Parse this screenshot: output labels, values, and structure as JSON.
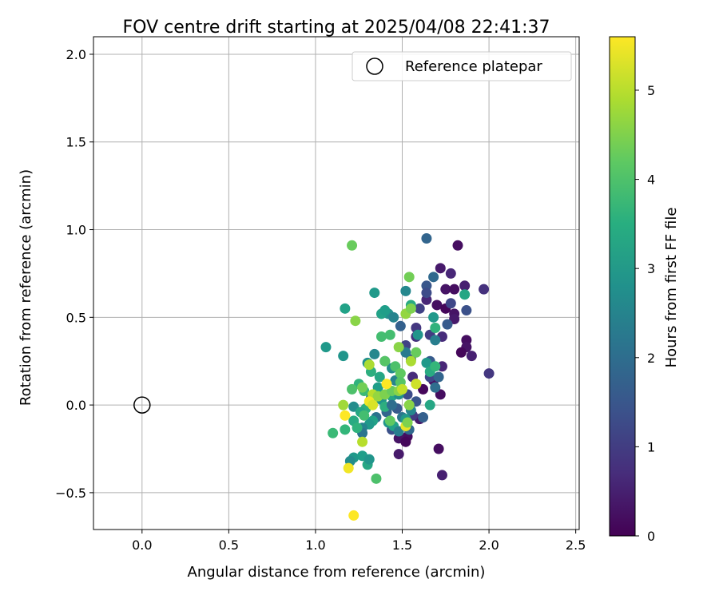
{
  "chart_data": {
    "type": "scatter",
    "title": "FOV centre drift starting at 2025/04/08 22:41:37",
    "xlabel": "Angular distance from reference (arcmin)",
    "ylabel": "Rotation from reference (arcmin)",
    "xlim": [
      -0.28,
      2.52
    ],
    "ylim": [
      -0.71,
      2.1
    ],
    "xticks": [
      0.0,
      0.5,
      1.0,
      1.5,
      2.0,
      2.5
    ],
    "xtick_labels": [
      "0.0",
      "0.5",
      "1.0",
      "1.5",
      "2.0",
      "2.5"
    ],
    "yticks": [
      -0.5,
      0.0,
      0.5,
      1.0,
      1.5,
      2.0
    ],
    "ytick_labels": [
      "−0.5",
      "0.0",
      "0.5",
      "1.0",
      "1.5",
      "2.0"
    ],
    "grid": true,
    "legend": {
      "position": "top-right",
      "label": "Reference platepar"
    },
    "reference_point": {
      "x": 0.0,
      "y": 0.0,
      "marker": "open-circle"
    },
    "colorbar": {
      "label": "Hours from first FF file",
      "colormap": "viridis",
      "min": 0,
      "max": 5.6,
      "ticks": [
        0,
        1,
        2,
        3,
        4,
        5
      ],
      "tick_labels": [
        "0",
        "1",
        "2",
        "3",
        "4",
        "5"
      ]
    },
    "points": [
      {
        "x": 1.82,
        "y": 0.91,
        "h": 0.2
      },
      {
        "x": 1.72,
        "y": 0.78,
        "h": 0.4
      },
      {
        "x": 1.78,
        "y": 0.75,
        "h": 0.6
      },
      {
        "x": 1.86,
        "y": 0.68,
        "h": 0.5
      },
      {
        "x": 1.97,
        "y": 0.66,
        "h": 0.8
      },
      {
        "x": 1.75,
        "y": 0.66,
        "h": 0.3
      },
      {
        "x": 1.8,
        "y": 0.66,
        "h": 0.2
      },
      {
        "x": 1.7,
        "y": 0.57,
        "h": 0.2
      },
      {
        "x": 1.64,
        "y": 0.6,
        "h": 0.6
      },
      {
        "x": 1.75,
        "y": 0.55,
        "h": 0.1
      },
      {
        "x": 1.8,
        "y": 0.52,
        "h": 0.3
      },
      {
        "x": 1.8,
        "y": 0.49,
        "h": 0.4
      },
      {
        "x": 1.87,
        "y": 0.37,
        "h": 0.2
      },
      {
        "x": 1.87,
        "y": 0.33,
        "h": 0.3
      },
      {
        "x": 1.84,
        "y": 0.3,
        "h": 0.1
      },
      {
        "x": 1.9,
        "y": 0.28,
        "h": 0.5
      },
      {
        "x": 2.0,
        "y": 0.18,
        "h": 0.9
      },
      {
        "x": 1.73,
        "y": 0.22,
        "h": 0.6
      },
      {
        "x": 1.68,
        "y": 0.14,
        "h": 0.3
      },
      {
        "x": 1.62,
        "y": 0.09,
        "h": 0.1
      },
      {
        "x": 1.72,
        "y": 0.06,
        "h": 0.2
      },
      {
        "x": 1.6,
        "y": -0.08,
        "h": 0.4
      },
      {
        "x": 1.53,
        "y": -0.18,
        "h": 0.2
      },
      {
        "x": 1.48,
        "y": -0.19,
        "h": 0.3
      },
      {
        "x": 1.52,
        "y": -0.21,
        "h": 0.1
      },
      {
        "x": 1.48,
        "y": -0.28,
        "h": 0.4
      },
      {
        "x": 1.71,
        "y": -0.25,
        "h": 0.2
      },
      {
        "x": 1.73,
        "y": -0.4,
        "h": 0.5
      },
      {
        "x": 1.64,
        "y": 0.95,
        "h": 1.8
      },
      {
        "x": 1.64,
        "y": 0.68,
        "h": 1.5
      },
      {
        "x": 1.68,
        "y": 0.73,
        "h": 1.9
      },
      {
        "x": 1.64,
        "y": 0.64,
        "h": 1.3
      },
      {
        "x": 1.78,
        "y": 0.58,
        "h": 1.2
      },
      {
        "x": 1.87,
        "y": 0.54,
        "h": 1.4
      },
      {
        "x": 1.6,
        "y": 0.55,
        "h": 1.1
      },
      {
        "x": 1.66,
        "y": 0.4,
        "h": 1.0
      },
      {
        "x": 1.58,
        "y": 0.44,
        "h": 0.9
      },
      {
        "x": 1.76,
        "y": 0.46,
        "h": 1.6
      },
      {
        "x": 1.73,
        "y": 0.39,
        "h": 0.7
      },
      {
        "x": 1.58,
        "y": 0.39,
        "h": 0.8
      },
      {
        "x": 1.52,
        "y": 0.34,
        "h": 1.1
      },
      {
        "x": 1.49,
        "y": 0.45,
        "h": 1.7
      },
      {
        "x": 1.55,
        "y": 0.26,
        "h": 1.4
      },
      {
        "x": 1.56,
        "y": 0.16,
        "h": 0.7
      },
      {
        "x": 1.66,
        "y": 0.16,
        "h": 1.2
      },
      {
        "x": 1.71,
        "y": 0.16,
        "h": 1.8
      },
      {
        "x": 1.66,
        "y": 0.25,
        "h": 1.6
      },
      {
        "x": 1.69,
        "y": 0.1,
        "h": 2.0
      },
      {
        "x": 1.53,
        "y": 0.06,
        "h": 1.3
      },
      {
        "x": 1.58,
        "y": 0.02,
        "h": 1.5
      },
      {
        "x": 1.56,
        "y": -0.06,
        "h": 1.0
      },
      {
        "x": 1.62,
        "y": -0.07,
        "h": 1.7
      },
      {
        "x": 1.54,
        "y": -0.14,
        "h": 1.9
      },
      {
        "x": 1.47,
        "y": -0.02,
        "h": 1.6
      },
      {
        "x": 1.44,
        "y": -0.14,
        "h": 1.4
      },
      {
        "x": 1.5,
        "y": -0.07,
        "h": 2.2
      },
      {
        "x": 1.41,
        "y": -0.04,
        "h": 1.8
      },
      {
        "x": 1.35,
        "y": -0.07,
        "h": 2.1
      },
      {
        "x": 1.52,
        "y": 0.65,
        "h": 2.6
      },
      {
        "x": 1.42,
        "y": 0.52,
        "h": 2.8
      },
      {
        "x": 1.45,
        "y": 0.5,
        "h": 2.5
      },
      {
        "x": 1.38,
        "y": 0.52,
        "h": 3.2
      },
      {
        "x": 1.55,
        "y": 0.57,
        "h": 3.4
      },
      {
        "x": 1.4,
        "y": 0.54,
        "h": 3.1
      },
      {
        "x": 1.68,
        "y": 0.5,
        "h": 3.0
      },
      {
        "x": 1.69,
        "y": 0.44,
        "h": 3.6
      },
      {
        "x": 1.69,
        "y": 0.37,
        "h": 2.4
      },
      {
        "x": 1.59,
        "y": 0.4,
        "h": 2.9
      },
      {
        "x": 1.86,
        "y": 0.63,
        "h": 3.3
      },
      {
        "x": 1.34,
        "y": 0.64,
        "h": 3.0
      },
      {
        "x": 1.17,
        "y": 0.55,
        "h": 3.2
      },
      {
        "x": 1.06,
        "y": 0.33,
        "h": 3.0
      },
      {
        "x": 1.16,
        "y": 0.28,
        "h": 2.9
      },
      {
        "x": 1.34,
        "y": 0.29,
        "h": 2.6
      },
      {
        "x": 1.4,
        "y": 0.25,
        "h": 2.4
      },
      {
        "x": 1.44,
        "y": 0.21,
        "h": 2.7
      },
      {
        "x": 1.3,
        "y": 0.24,
        "h": 2.8
      },
      {
        "x": 1.32,
        "y": 0.19,
        "h": 3.5
      },
      {
        "x": 1.37,
        "y": 0.16,
        "h": 3.3
      },
      {
        "x": 1.46,
        "y": 0.14,
        "h": 2.5
      },
      {
        "x": 1.52,
        "y": 0.3,
        "h": 2.3
      },
      {
        "x": 1.64,
        "y": 0.24,
        "h": 3.0
      },
      {
        "x": 1.66,
        "y": 0.19,
        "h": 3.4
      },
      {
        "x": 1.69,
        "y": 0.22,
        "h": 3.7
      },
      {
        "x": 1.25,
        "y": 0.12,
        "h": 3.6
      },
      {
        "x": 1.28,
        "y": 0.08,
        "h": 3.8
      },
      {
        "x": 1.21,
        "y": 0.09,
        "h": 4.0
      },
      {
        "x": 1.32,
        "y": 0.04,
        "h": 2.6
      },
      {
        "x": 1.36,
        "y": 0.1,
        "h": 3.1
      },
      {
        "x": 1.38,
        "y": 0.03,
        "h": 2.9
      },
      {
        "x": 1.44,
        "y": 0.05,
        "h": 3.3
      },
      {
        "x": 1.48,
        "y": 0.06,
        "h": 2.8
      },
      {
        "x": 1.22,
        "y": -0.01,
        "h": 2.7
      },
      {
        "x": 1.29,
        "y": -0.02,
        "h": 3.5
      },
      {
        "x": 1.26,
        "y": -0.04,
        "h": 3.3
      },
      {
        "x": 1.28,
        "y": -0.06,
        "h": 3.9
      },
      {
        "x": 1.33,
        "y": -0.09,
        "h": 3.2
      },
      {
        "x": 1.31,
        "y": -0.11,
        "h": 3.0
      },
      {
        "x": 1.27,
        "y": -0.13,
        "h": 2.5
      },
      {
        "x": 1.22,
        "y": -0.09,
        "h": 3.4
      },
      {
        "x": 1.17,
        "y": -0.14,
        "h": 3.7
      },
      {
        "x": 1.1,
        "y": -0.16,
        "h": 3.8
      },
      {
        "x": 1.27,
        "y": -0.16,
        "h": 2.2
      },
      {
        "x": 1.42,
        "y": -0.1,
        "h": 2.9
      },
      {
        "x": 1.45,
        "y": -0.12,
        "h": 3.2
      },
      {
        "x": 1.48,
        "y": -0.15,
        "h": 2.4
      },
      {
        "x": 1.52,
        "y": -0.08,
        "h": 3.0
      },
      {
        "x": 1.4,
        "y": -0.01,
        "h": 3.5
      },
      {
        "x": 1.44,
        "y": 0.0,
        "h": 2.0
      },
      {
        "x": 1.55,
        "y": -0.03,
        "h": 2.6
      },
      {
        "x": 1.66,
        "y": 0.0,
        "h": 3.3
      },
      {
        "x": 1.22,
        "y": -0.3,
        "h": 3.0
      },
      {
        "x": 1.2,
        "y": -0.32,
        "h": 2.7
      },
      {
        "x": 1.27,
        "y": -0.29,
        "h": 3.1
      },
      {
        "x": 1.3,
        "y": -0.34,
        "h": 3.3
      },
      {
        "x": 1.31,
        "y": -0.31,
        "h": 2.9
      },
      {
        "x": 1.24,
        "y": -0.13,
        "h": 3.6
      },
      {
        "x": 1.43,
        "y": 0.4,
        "h": 3.9
      },
      {
        "x": 1.4,
        "y": 0.25,
        "h": 4.1
      },
      {
        "x": 1.46,
        "y": 0.22,
        "h": 4.0
      },
      {
        "x": 1.48,
        "y": 0.33,
        "h": 4.6
      },
      {
        "x": 1.58,
        "y": 0.3,
        "h": 4.3
      },
      {
        "x": 1.54,
        "y": 0.73,
        "h": 4.4
      },
      {
        "x": 1.52,
        "y": 0.52,
        "h": 4.7
      },
      {
        "x": 1.55,
        "y": 0.55,
        "h": 4.5
      },
      {
        "x": 1.38,
        "y": 0.39,
        "h": 3.9
      },
      {
        "x": 1.21,
        "y": 0.91,
        "h": 4.3
      },
      {
        "x": 1.23,
        "y": 0.48,
        "h": 4.6
      },
      {
        "x": 1.49,
        "y": 0.18,
        "h": 4.2
      },
      {
        "x": 1.55,
        "y": 0.25,
        "h": 4.9
      },
      {
        "x": 1.49,
        "y": 0.13,
        "h": 4.1
      },
      {
        "x": 1.58,
        "y": 0.12,
        "h": 4.8
      },
      {
        "x": 1.31,
        "y": 0.23,
        "h": 4.9
      },
      {
        "x": 1.27,
        "y": 0.1,
        "h": 4.4
      },
      {
        "x": 1.33,
        "y": 0.06,
        "h": 5.0
      },
      {
        "x": 1.36,
        "y": 0.05,
        "h": 4.7
      },
      {
        "x": 1.4,
        "y": 0.06,
        "h": 4.5
      },
      {
        "x": 1.44,
        "y": 0.08,
        "h": 4.3
      },
      {
        "x": 1.48,
        "y": 0.08,
        "h": 4.6
      },
      {
        "x": 1.5,
        "y": 0.09,
        "h": 5.1
      },
      {
        "x": 1.41,
        "y": 0.12,
        "h": 5.6
      },
      {
        "x": 1.31,
        "y": 0.02,
        "h": 5.5
      },
      {
        "x": 1.33,
        "y": 0.0,
        "h": 5.3
      },
      {
        "x": 1.43,
        "y": -0.09,
        "h": 4.2
      },
      {
        "x": 1.52,
        "y": -0.12,
        "h": 5.4
      },
      {
        "x": 1.53,
        "y": -0.1,
        "h": 4.5
      },
      {
        "x": 1.16,
        "y": 0.0,
        "h": 4.8
      },
      {
        "x": 1.17,
        "y": -0.06,
        "h": 5.6
      },
      {
        "x": 1.27,
        "y": -0.21,
        "h": 5.0
      },
      {
        "x": 1.19,
        "y": -0.36,
        "h": 5.5
      },
      {
        "x": 1.35,
        "y": -0.42,
        "h": 4.0
      },
      {
        "x": 1.22,
        "y": -0.63,
        "h": 5.6
      },
      {
        "x": 1.54,
        "y": 0.0,
        "h": 4.6
      },
      {
        "x": 1.58,
        "y": 0.12,
        "h": 5.2
      }
    ]
  }
}
